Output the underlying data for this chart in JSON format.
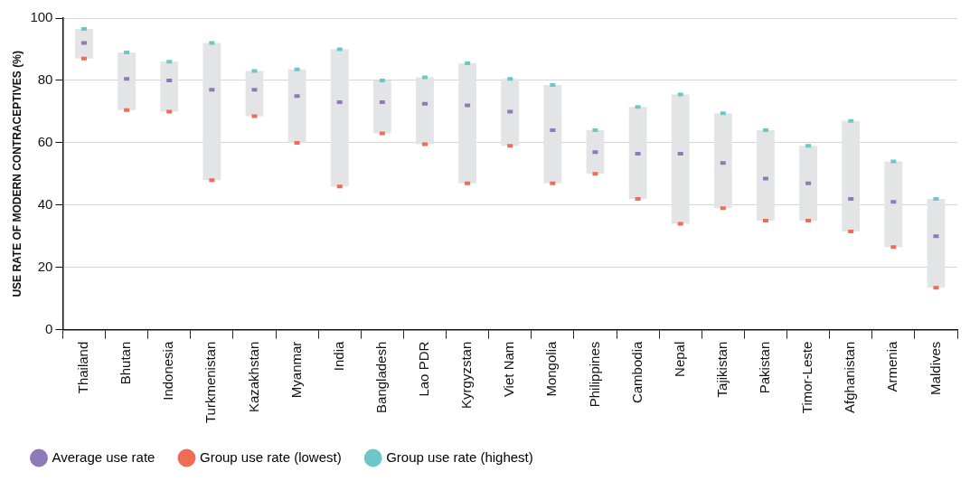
{
  "chart_data": {
    "type": "scatter",
    "ylabel": "USE RATE OF MODERN CONTRACEPTIVES (%)",
    "categories": [
      "Thailand",
      "Bhutan",
      "Indonesia",
      "Turkmenistan",
      "Kazakhstan",
      "Myanmar",
      "India",
      "Bangladesh",
      "Lao PDR",
      "Kyrgyzstan",
      "Viet Nam",
      "Mongolia",
      "Philippines",
      "Cambodia",
      "Nepal",
      "Tajikistan",
      "Pakistan",
      "Timor-Leste",
      "Afghanistan",
      "Armenia",
      "Maldives"
    ],
    "series": [
      {
        "name": "Average use rate",
        "color": "#8e79bb",
        "values": [
          92,
          80.5,
          80,
          77,
          77,
          75,
          73,
          73,
          72.5,
          72,
          70,
          64,
          57,
          56.5,
          56.5,
          53.5,
          48.5,
          47,
          42,
          41,
          30
        ]
      },
      {
        "name": "Group use rate (lowest)",
        "color": "#f26b55",
        "values": [
          87,
          70.5,
          70,
          48,
          68.5,
          60,
          46,
          63,
          59.5,
          47,
          59,
          47,
          50,
          42,
          34,
          39,
          35,
          35,
          31.5,
          26.5,
          13.5
        ]
      },
      {
        "name": "Group use rate (highest)",
        "color": "#6cc8c8",
        "values": [
          96.5,
          89,
          86,
          92,
          83,
          83.5,
          90,
          80,
          81,
          85.5,
          80.5,
          78.5,
          64,
          71.5,
          75.5,
          69.5,
          64,
          59,
          67,
          54,
          42
        ]
      },
      {
        "type": "bar",
        "color": "#e3e4e5",
        "base": [
          87,
          70.5,
          70,
          48,
          68.5,
          60,
          46,
          63,
          59.5,
          47,
          59,
          47,
          50,
          42,
          34,
          39,
          35,
          35,
          31.5,
          26.5,
          13.5
        ],
        "values": [
          9.5,
          18.5,
          16,
          44,
          14.5,
          23.5,
          44,
          17,
          21.5,
          38.5,
          21.5,
          31.5,
          14,
          29.5,
          41.5,
          30.5,
          29,
          24,
          35.5,
          27.5,
          28.5
        ]
      }
    ],
    "ylim": [
      0,
      100
    ],
    "yticks": [
      0,
      20,
      40,
      60,
      80,
      100
    ],
    "grid": "y",
    "legend": "bottom"
  }
}
